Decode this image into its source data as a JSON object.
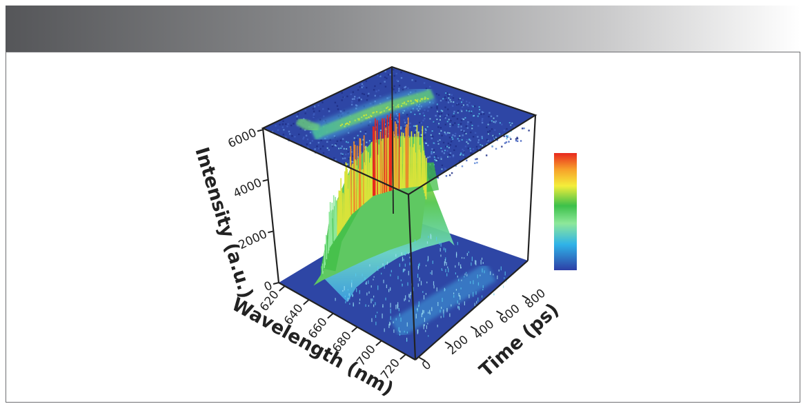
{
  "chart_data": {
    "type": "surface3d",
    "x_axis": {
      "label": "Wavelength (nm)",
      "ticks": [
        620,
        640,
        660,
        680,
        700,
        720
      ],
      "range": [
        615,
        728
      ]
    },
    "y_axis": {
      "label": "Time (ps)",
      "ticks": [
        0,
        200,
        400,
        600,
        800
      ],
      "range": [
        -30,
        860
      ]
    },
    "z_axis": {
      "label": "Intensity (a.u.)",
      "ticks": [
        0,
        2000,
        4000,
        6000
      ],
      "range": [
        0,
        6000
      ]
    },
    "projection": "top-plane heatmap",
    "colorbar": {
      "colors": [
        "#2d3fa6",
        "#2fb3e8",
        "#8ee89a",
        "#3cc04a",
        "#f4ee3a",
        "#f7a12a",
        "#e8281e"
      ]
    },
    "ridge": {
      "description_points": [
        {
          "wavelength": 638,
          "time": 150,
          "intensity": 2600
        },
        {
          "wavelength": 640,
          "time": 300,
          "intensity": 4200
        },
        {
          "wavelength": 642,
          "time": 450,
          "intensity": 4800
        },
        {
          "wavelength": 645,
          "time": 600,
          "intensity": 4600
        },
        {
          "wavelength": 650,
          "time": 760,
          "intensity": 4200
        }
      ]
    }
  }
}
